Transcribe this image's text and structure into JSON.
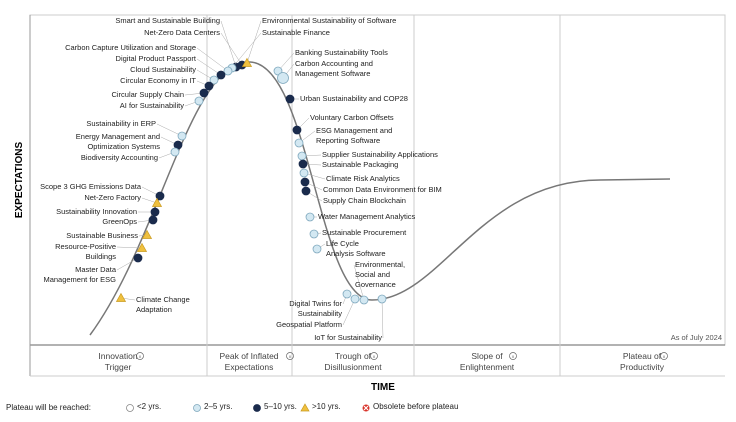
{
  "y_axis_title": "EXPECTATIONS",
  "x_axis_title": "TIME",
  "as_of": "As of July 2024",
  "phases": [
    "Innovation\nTrigger",
    "Peak of Inflated\nExpectations",
    "Trough of\nDisillusionment",
    "Slope of\nEnlightenment",
    "Plateau of\nProductivity"
  ],
  "legend": {
    "title": "Plateau will be reached:",
    "items": [
      "<2 yrs.",
      "2–5 yrs.",
      "5–10 yrs.",
      ">10 yrs.",
      "Obsolete before plateau"
    ]
  },
  "items": [
    {
      "label": "Smart and Sustainable Building",
      "plateau": "5–10 yrs."
    },
    {
      "label": "Net-Zero Data Centers",
      "plateau": "5–10 yrs."
    },
    {
      "label": "Environmental Sustainability of Software",
      "plateau": ">10 yrs."
    },
    {
      "label": "Sustainable Finance",
      "plateau": "2–5 yrs."
    },
    {
      "label": "Carbon Capture Utilization and Storage",
      "plateau": "2–5 yrs."
    },
    {
      "label": "Digital Product Passport",
      "plateau": "5–10 yrs."
    },
    {
      "label": "Cloud Sustainability",
      "plateau": "2–5 yrs."
    },
    {
      "label": "Circular Economy in IT",
      "plateau": "5–10 yrs."
    },
    {
      "label": "Circular Supply Chain",
      "plateau": "5–10 yrs."
    },
    {
      "label": "AI for Sustainability",
      "plateau": "2–5 yrs."
    },
    {
      "label": "Sustainability in ERP",
      "plateau": "2–5 yrs."
    },
    {
      "label": "Energy Management and\nOptimization Systems",
      "plateau": "5–10 yrs."
    },
    {
      "label": "Biodiversity Accounting",
      "plateau": "2–5 yrs."
    },
    {
      "label": "Scope 3 GHG Emissions Data",
      "plateau": "5–10 yrs."
    },
    {
      "label": "Net-Zero Factory",
      "plateau": ">10 yrs."
    },
    {
      "label": "Sustainability Innovation",
      "plateau": "5–10 yrs."
    },
    {
      "label": "GreenOps",
      "plateau": "5–10 yrs."
    },
    {
      "label": "Sustainable Business",
      "plateau": ">10 yrs."
    },
    {
      "label": "Resource-Positive\nBuildings",
      "plateau": ">10 yrs."
    },
    {
      "label": "Master Data\nManagement for ESG",
      "plateau": "5–10 yrs."
    },
    {
      "label": "Climate Change\nAdaptation",
      "plateau": ">10 yrs."
    },
    {
      "label": "Banking Sustainability Tools",
      "plateau": "2–5 yrs."
    },
    {
      "label": "Carbon Accounting and\nManagement Software",
      "plateau": "2–5 yrs."
    },
    {
      "label": "Urban Sustainability and COP28",
      "plateau": "5–10 yrs."
    },
    {
      "label": "Voluntary Carbon Offsets",
      "plateau": "5–10 yrs."
    },
    {
      "label": "ESG Management and\nReporting Software",
      "plateau": "2–5 yrs."
    },
    {
      "label": "Supplier Sustainability Applications",
      "plateau": "2–5 yrs."
    },
    {
      "label": "Sustainable Packaging",
      "plateau": "5–10 yrs."
    },
    {
      "label": "Climate Risk Analytics",
      "plateau": "2–5 yrs."
    },
    {
      "label": "Common Data Environment for BIM",
      "plateau": "5–10 yrs."
    },
    {
      "label": "Supply Chain Blockchain",
      "plateau": "5–10 yrs."
    },
    {
      "label": "Water Management Analytics",
      "plateau": "2–5 yrs."
    },
    {
      "label": "Sustainable Procurement",
      "plateau": "2–5 yrs."
    },
    {
      "label": "Life Cycle\nAnalysis Software",
      "plateau": "2–5 yrs."
    },
    {
      "label": "Environmental,\nSocial and\nGovernance",
      "plateau": "2–5 yrs."
    },
    {
      "label": "Digital Twins for\nSustainability",
      "plateau": "2–5 yrs."
    },
    {
      "label": "Geospatial Platform",
      "plateau": "2–5 yrs."
    },
    {
      "label": "IoT for Sustainability",
      "plateau": "2–5 yrs."
    }
  ]
}
